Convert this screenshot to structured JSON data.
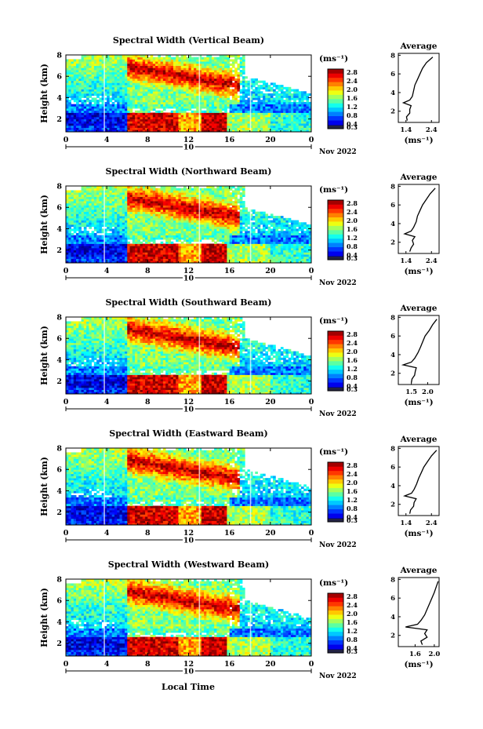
{
  "figure": {
    "bottom_label": "Local Time",
    "height_label": "Height (km)",
    "cbar_unit": "(ms⁻¹)",
    "avg_title": "Average",
    "avg_unit": "(ms⁻¹)",
    "date_day": "10",
    "date_label": "Nov 2022"
  },
  "chart_data": [
    {
      "type": "heatmap",
      "title": "Spectral Width (Vertical Beam)",
      "xlabel": "Local Time",
      "ylabel": "Height (km)",
      "xlim": [
        0,
        24
      ],
      "ylim": [
        0.8,
        8
      ],
      "x_ticks": [
        "0",
        "4",
        "8",
        "12",
        "16",
        "20",
        "0"
      ],
      "y_ticks": [
        "2",
        "4",
        "6",
        "8"
      ],
      "colorbar": {
        "unit": "(ms⁻¹)",
        "range": [
          0.3,
          2.7
        ],
        "ticks": [
          "0.3",
          "0.4",
          "0.8",
          "1.2",
          "1.6",
          "2.0",
          "2.4",
          "2.8"
        ]
      },
      "average_profile": {
        "title": "Average",
        "xlabel": "(ms⁻¹)",
        "x_ticks": [
          "1.4",
          "2.4"
        ],
        "xlim": [
          1.1,
          2.7
        ],
        "height": [
          1.0,
          1.4,
          1.8,
          2.2,
          2.6,
          2.9,
          3.2,
          3.6,
          4.2,
          4.8,
          5.4,
          6.0,
          6.6,
          7.2,
          7.8
        ],
        "value": [
          1.45,
          1.42,
          1.55,
          1.55,
          1.6,
          1.3,
          1.55,
          1.65,
          1.7,
          1.75,
          1.85,
          1.95,
          2.05,
          2.2,
          2.45
        ]
      }
    },
    {
      "type": "heatmap",
      "title": "Spectral Width (Northward Beam)",
      "xlabel": "Local Time",
      "ylabel": "Height (km)",
      "xlim": [
        0,
        24
      ],
      "ylim": [
        0.8,
        8
      ],
      "x_ticks": [
        "0",
        "4",
        "8",
        "12",
        "16",
        "20",
        "0"
      ],
      "y_ticks": [
        "2",
        "4",
        "6",
        "8"
      ],
      "colorbar": {
        "unit": "(ms⁻¹)",
        "range": [
          0.3,
          2.7
        ],
        "ticks": [
          "0.3",
          "0.4",
          "0.8",
          "1.2",
          "1.6",
          "2.0",
          "2.4",
          "2.8"
        ]
      },
      "average_profile": {
        "title": "Average",
        "xlabel": "(ms⁻¹)",
        "x_ticks": [
          "1.4",
          "2.4"
        ],
        "xlim": [
          1.1,
          2.7
        ],
        "height": [
          1.0,
          1.4,
          1.8,
          2.2,
          2.6,
          2.9,
          3.2,
          3.6,
          4.2,
          4.8,
          5.4,
          6.0,
          6.6,
          7.2,
          7.8
        ],
        "value": [
          1.55,
          1.6,
          1.7,
          1.65,
          1.75,
          1.35,
          1.6,
          1.7,
          1.8,
          1.85,
          1.95,
          2.05,
          2.2,
          2.35,
          2.55
        ]
      }
    },
    {
      "type": "heatmap",
      "title": "Spectral Width (Southward Beam)",
      "xlabel": "Local Time",
      "ylabel": "Height (km)",
      "xlim": [
        0,
        24
      ],
      "ylim": [
        0.8,
        8
      ],
      "x_ticks": [
        "0",
        "4",
        "8",
        "12",
        "16",
        "20",
        "0"
      ],
      "y_ticks": [
        "2",
        "4",
        "6",
        "8"
      ],
      "colorbar": {
        "unit": "(ms⁻¹)",
        "range": [
          0.3,
          2.7
        ],
        "ticks": [
          "0.3",
          "0.4",
          "0.8",
          "1.2",
          "1.6",
          "2.0",
          "2.4",
          "2.8"
        ]
      },
      "average_profile": {
        "title": "Average",
        "xlabel": "(ms⁻¹)",
        "x_ticks": [
          "1.5",
          "2.0"
        ],
        "xlim": [
          1.1,
          2.35
        ],
        "height": [
          1.0,
          1.4,
          1.8,
          2.2,
          2.6,
          2.9,
          3.2,
          3.6,
          4.2,
          4.8,
          5.4,
          6.0,
          6.6,
          7.2,
          7.8
        ],
        "value": [
          1.5,
          1.52,
          1.6,
          1.62,
          1.65,
          1.25,
          1.5,
          1.6,
          1.7,
          1.78,
          1.85,
          1.92,
          2.05,
          2.15,
          2.28
        ]
      }
    },
    {
      "type": "heatmap",
      "title": "Spectral Width (Eastward Beam)",
      "xlabel": "Local Time",
      "ylabel": "Height (km)",
      "xlim": [
        0,
        24
      ],
      "ylim": [
        0.8,
        8
      ],
      "x_ticks": [
        "0",
        "4",
        "8",
        "12",
        "16",
        "20",
        "0"
      ],
      "y_ticks": [
        "2",
        "4",
        "6",
        "8"
      ],
      "colorbar": {
        "unit": "(ms⁻¹)",
        "range": [
          0.3,
          2.7
        ],
        "ticks": [
          "0.3",
          "0.4",
          "0.8",
          "1.2",
          "1.6",
          "2.0",
          "2.4",
          "2.8"
        ]
      },
      "average_profile": {
        "title": "Average",
        "xlabel": "(ms⁻¹)",
        "x_ticks": [
          "1.4",
          "2.4"
        ],
        "xlim": [
          1.1,
          2.7
        ],
        "height": [
          1.0,
          1.4,
          1.8,
          2.2,
          2.6,
          2.9,
          3.2,
          3.6,
          4.2,
          4.8,
          5.4,
          6.0,
          6.6,
          7.2,
          7.8
        ],
        "value": [
          1.55,
          1.58,
          1.7,
          1.72,
          1.8,
          1.35,
          1.62,
          1.72,
          1.82,
          1.9,
          2.0,
          2.1,
          2.25,
          2.4,
          2.6
        ]
      }
    },
    {
      "type": "heatmap",
      "title": "Spectral Width (Westward Beam)",
      "xlabel": "Local Time",
      "ylabel": "Height (km)",
      "xlim": [
        0,
        24
      ],
      "ylim": [
        0.8,
        8
      ],
      "x_ticks": [
        "0",
        "4",
        "8",
        "12",
        "16",
        "20",
        "0"
      ],
      "y_ticks": [
        "2",
        "4",
        "6",
        "8"
      ],
      "colorbar": {
        "unit": "(ms⁻¹)",
        "range": [
          0.3,
          2.7
        ],
        "ticks": [
          "0.3",
          "0.4",
          "0.8",
          "1.2",
          "1.6",
          "2.0",
          "2.4",
          "2.8"
        ]
      },
      "average_profile": {
        "title": "Average",
        "xlabel": "(ms⁻¹)",
        "x_ticks": [
          "1.6",
          "2.0"
        ],
        "xlim": [
          1.25,
          2.1
        ],
        "height": [
          1.0,
          1.4,
          1.8,
          2.2,
          2.6,
          2.9,
          3.2,
          3.6,
          4.2,
          4.8,
          5.4,
          6.0,
          6.6,
          7.2,
          7.8
        ],
        "value": [
          1.75,
          1.72,
          1.85,
          1.8,
          1.85,
          1.4,
          1.65,
          1.72,
          1.8,
          1.85,
          1.9,
          1.95,
          2.0,
          2.04,
          2.08
        ]
      }
    }
  ]
}
